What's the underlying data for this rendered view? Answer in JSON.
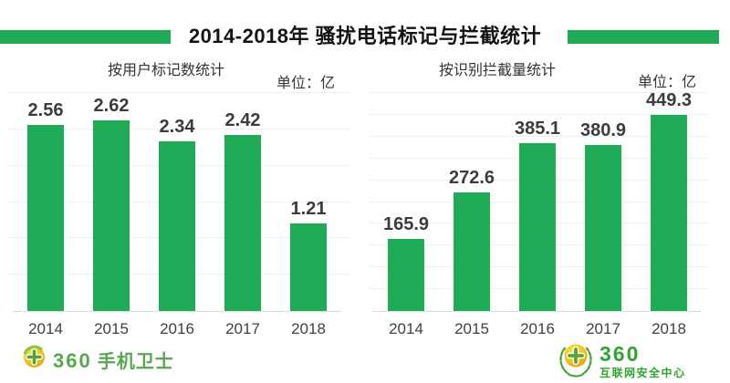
{
  "page_title": "2014-2018年 骚扰电话标记与拦截统计",
  "colors": {
    "bar_green": "#1fab56",
    "stripe_green": "#1fab56",
    "logo_green_left": "#55a84f",
    "logo_green_right": "#2fa52f",
    "gridline": "#efefef",
    "label_dark": "#3c3c3c"
  },
  "chart_data": [
    {
      "type": "bar",
      "title": "按用户标记数统计",
      "unit_label": "单位：亿",
      "categories": [
        "2014",
        "2015",
        "2016",
        "2017",
        "2018"
      ],
      "values": [
        2.56,
        2.62,
        2.34,
        2.42,
        1.21
      ],
      "ylabel": "",
      "xlabel": "",
      "ylim": [
        0,
        3
      ],
      "grid_step": 0.5,
      "grid": true,
      "legend": false,
      "bar_color": "#1fab56"
    },
    {
      "type": "bar",
      "title": "按识别拦截量统计",
      "unit_label": "单位：亿",
      "categories": [
        "2014",
        "2015",
        "2016",
        "2017",
        "2018"
      ],
      "values": [
        165.9,
        272.6,
        385.1,
        380.9,
        449.3
      ],
      "ylabel": "",
      "xlabel": "",
      "ylim": [
        0,
        500
      ],
      "grid_step": 50,
      "grid": true,
      "legend": false,
      "bar_color": "#1fab56"
    }
  ],
  "footer": {
    "left_brand": "360",
    "left_product": "手机卫士",
    "right_brand": "360",
    "right_product": "互联网安全中心"
  }
}
